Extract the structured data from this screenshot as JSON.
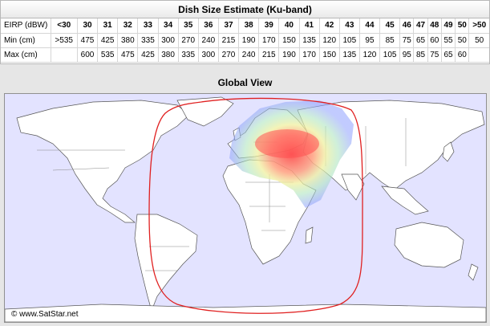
{
  "table": {
    "title": "Dish Size Estimate (Ku-band)",
    "rows": [
      {
        "label": "EIRP (dBW)",
        "values": [
          "<30",
          "30",
          "31",
          "32",
          "33",
          "34",
          "35",
          "36",
          "37",
          "38",
          "39",
          "40",
          "41",
          "42",
          "43",
          "44",
          "45",
          "46",
          "47",
          "48",
          "49",
          "50",
          ">50"
        ]
      },
      {
        "label": "Min (cm)",
        "values": [
          ">535",
          "475",
          "425",
          "380",
          "335",
          "300",
          "270",
          "240",
          "215",
          "190",
          "170",
          "150",
          "135",
          "120",
          "105",
          "95",
          "85",
          "75",
          "65",
          "60",
          "55",
          "50",
          "50"
        ]
      },
      {
        "label": "Max (cm)",
        "values": [
          "",
          "600",
          "535",
          "475",
          "425",
          "380",
          "335",
          "300",
          "270",
          "240",
          "215",
          "190",
          "170",
          "150",
          "135",
          "120",
          "105",
          "95",
          "85",
          "75",
          "65",
          "60",
          ""
        ]
      }
    ]
  },
  "map": {
    "title": "Global View",
    "copyright": "© www.SatStar.net",
    "colors": {
      "ocean": "#e3e3ff",
      "land": "#ffffff",
      "border": "#555555",
      "coverage_outline": "#e02020",
      "footprint_outer": "#8fa0ff",
      "footprint_mid": "#b0e6b0",
      "footprint_core": "#ff6060"
    }
  }
}
